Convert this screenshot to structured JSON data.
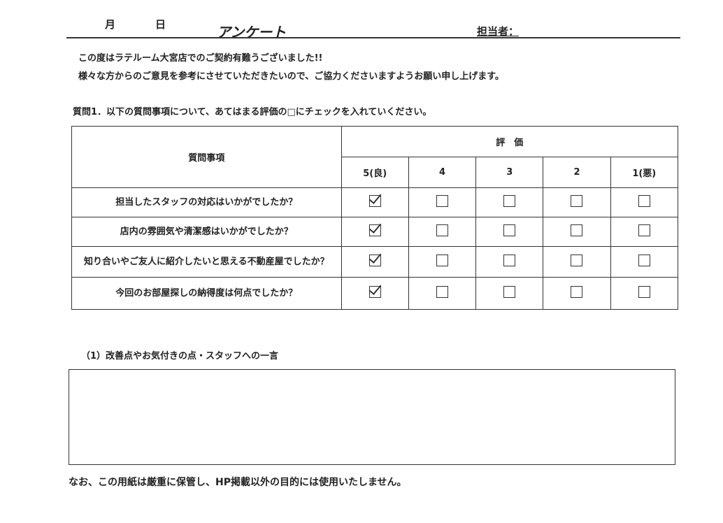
{
  "header": {
    "month_label": "月",
    "day_label": "日",
    "title": "アンケート",
    "staff_label": "担当者："
  },
  "intro": {
    "line1": "この度はラテルーム大宮店でのご契約有難うございました!!",
    "line2": "様々な方からのご意見を参考にさせていただきたいので、ご協力くださいますようお願い申し上げます。"
  },
  "question1": {
    "instruction": "質問1．以下の質問事項について、あてはまる評価の□にチェックを入れていください。",
    "col_header_items": "質問事項",
    "col_header_rating": "評　価",
    "rating_labels": [
      "5(良)",
      "4",
      "3",
      "2",
      "1(悪)"
    ],
    "rows": [
      {
        "question": "担当したスタッフの対応はいかがでしたか？",
        "selected": "5(良)"
      },
      {
        "question": "店内の雰囲気や清潔感はいかがでしたか？",
        "selected": "5(良)"
      },
      {
        "question": "知り合いやご友人に紹介したいと思える不動産屋でしたか？",
        "selected": "5(良)"
      },
      {
        "question": "今回のお部屋探しの納得度は何点でしたか？",
        "selected": "5(良)"
      }
    ]
  },
  "comment": {
    "label": "（1）改善点やお気付きの点・スタッフへの一言",
    "value": ""
  },
  "footer": {
    "note": "なお、この用紙は厳重に保管し、HP掲載以外の目的には使用いたしません。"
  }
}
